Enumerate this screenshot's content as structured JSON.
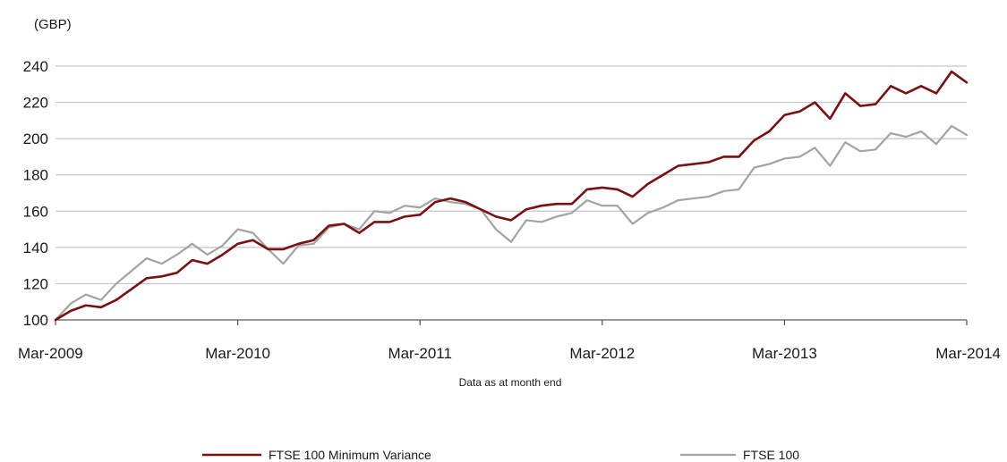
{
  "chart_data": {
    "type": "line",
    "unit_label": "(GBP)",
    "xlabel": "Data as at month end",
    "ylim": [
      100,
      240
    ],
    "y_ticks": [
      100,
      120,
      140,
      160,
      180,
      200,
      220,
      240
    ],
    "x_ticks": [
      "Mar-2009",
      "Mar-2010",
      "Mar-2011",
      "Mar-2012",
      "Mar-2013",
      "Mar-2014"
    ],
    "grid": true,
    "legend_position": "bottom",
    "x": [
      "2009-03",
      "2009-04",
      "2009-05",
      "2009-06",
      "2009-07",
      "2009-08",
      "2009-09",
      "2009-10",
      "2009-11",
      "2009-12",
      "2010-01",
      "2010-02",
      "2010-03",
      "2010-04",
      "2010-05",
      "2010-06",
      "2010-07",
      "2010-08",
      "2010-09",
      "2010-10",
      "2010-11",
      "2010-12",
      "2011-01",
      "2011-02",
      "2011-03",
      "2011-04",
      "2011-05",
      "2011-06",
      "2011-07",
      "2011-08",
      "2011-09",
      "2011-10",
      "2011-11",
      "2011-12",
      "2012-01",
      "2012-02",
      "2012-03",
      "2012-04",
      "2012-05",
      "2012-06",
      "2012-07",
      "2012-08",
      "2012-09",
      "2012-10",
      "2012-11",
      "2012-12",
      "2013-01",
      "2013-02",
      "2013-03",
      "2013-04",
      "2013-05",
      "2013-06",
      "2013-07",
      "2013-08",
      "2013-09",
      "2013-10",
      "2013-11",
      "2013-12",
      "2014-01",
      "2014-02",
      "2014-03"
    ],
    "series": [
      {
        "name": "FTSE 100 Minimum Variance",
        "color": "#7a1010",
        "values": [
          100,
          105,
          108,
          107,
          111,
          117,
          123,
          124,
          126,
          133,
          131,
          136,
          142,
          144,
          139,
          139,
          142,
          144,
          152,
          153,
          148,
          154,
          154,
          157,
          158,
          165,
          167,
          165,
          161,
          157,
          155,
          161,
          163,
          164,
          164,
          172,
          173,
          172,
          168,
          175,
          180,
          185,
          186,
          187,
          190,
          190,
          199,
          204,
          213,
          215,
          220,
          211,
          225,
          218,
          219,
          229,
          225,
          229,
          225,
          237,
          231
        ],
        "legend_label": "FTSE 100 Minimum Variance"
      },
      {
        "name": "FTSE 100",
        "color": "#a3a3a3",
        "values": [
          100,
          109,
          114,
          111,
          120,
          127,
          134,
          131,
          136,
          142,
          136,
          141,
          150,
          148,
          139,
          131,
          141,
          142,
          151,
          153,
          150,
          160,
          159,
          163,
          162,
          167,
          165,
          164,
          161,
          150,
          143,
          155,
          154,
          157,
          159,
          166,
          163,
          163,
          153,
          159,
          162,
          166,
          167,
          168,
          171,
          172,
          184,
          186,
          189,
          190,
          195,
          185,
          198,
          193,
          194,
          203,
          201,
          204,
          197,
          207,
          202
        ],
        "legend_label": "FTSE 100"
      }
    ]
  }
}
